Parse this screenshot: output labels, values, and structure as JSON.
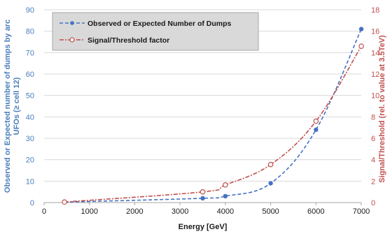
{
  "chart_data": {
    "type": "line",
    "xlabel": "Energy [GeV]",
    "ylabel_left_line1": "Observed or Expected number of dumps by arc",
    "ylabel_left_line2": "UFOs (≥ cell 12)",
    "ylabel_right": "Signal/Threshold (rel. to value at 3.5TeV)",
    "xlim": [
      0,
      7000
    ],
    "ylim_left": [
      0,
      90
    ],
    "ylim_right": [
      0,
      18
    ],
    "x_ticks": [
      "0",
      "1000",
      "2000",
      "3000",
      "4000",
      "5000",
      "6000",
      "7000"
    ],
    "y_left_ticks": [
      "0",
      "10",
      "20",
      "30",
      "40",
      "50",
      "60",
      "70",
      "80",
      "90"
    ],
    "y_right_ticks": [
      "0",
      "2",
      "4",
      "6",
      "8",
      "10",
      "12",
      "14",
      "16",
      "18"
    ],
    "grid": "horizontal",
    "legend_position": "top-left",
    "series": [
      {
        "name": "Observed or Expected Number of Dumps",
        "axis": "left",
        "color": "#4472c4",
        "marker": "filled-circle",
        "x": [
          450,
          3500,
          4000,
          5000,
          6000,
          7000
        ],
        "values": [
          0.2,
          2,
          3,
          9,
          34,
          81
        ]
      },
      {
        "name": "Signal/Threshold factor",
        "axis": "right",
        "color": "#c0504d",
        "marker": "open-circle",
        "x": [
          450,
          3500,
          4000,
          5000,
          6000,
          7000
        ],
        "values": [
          0.05,
          1.0,
          1.65,
          3.55,
          7.6,
          14.6
        ]
      }
    ]
  }
}
